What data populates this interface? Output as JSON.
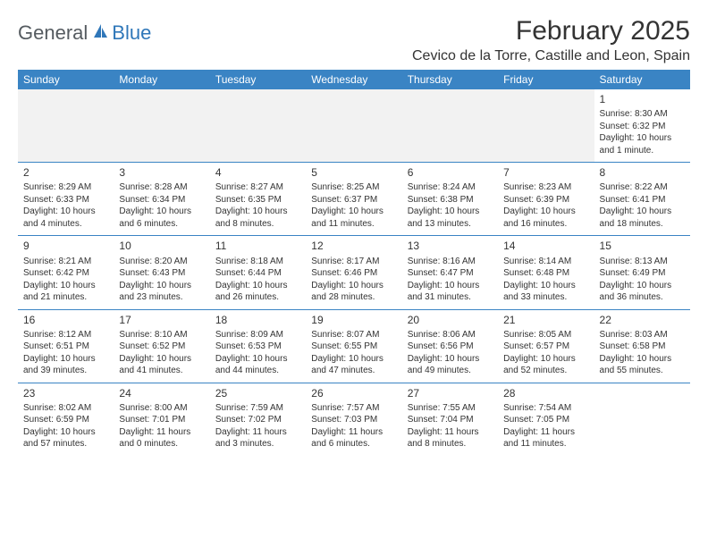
{
  "logo": {
    "general": "General",
    "blue": "Blue"
  },
  "title": "February 2025",
  "location": "Cevico de la Torre, Castille and Leon, Spain",
  "colors": {
    "header_bg": "#3a84c4",
    "header_text": "#ffffff",
    "blank_bg": "#f2f2f2",
    "text": "#333333",
    "logo_gray": "#555b60",
    "logo_blue": "#2f77b9"
  },
  "day_headers": [
    "Sunday",
    "Monday",
    "Tuesday",
    "Wednesday",
    "Thursday",
    "Friday",
    "Saturday"
  ],
  "weeks": [
    [
      null,
      null,
      null,
      null,
      null,
      null,
      {
        "n": "1",
        "sr": "Sunrise: 8:30 AM",
        "ss": "Sunset: 6:32 PM",
        "dl": "Daylight: 10 hours and 1 minute."
      }
    ],
    [
      {
        "n": "2",
        "sr": "Sunrise: 8:29 AM",
        "ss": "Sunset: 6:33 PM",
        "dl": "Daylight: 10 hours and 4 minutes."
      },
      {
        "n": "3",
        "sr": "Sunrise: 8:28 AM",
        "ss": "Sunset: 6:34 PM",
        "dl": "Daylight: 10 hours and 6 minutes."
      },
      {
        "n": "4",
        "sr": "Sunrise: 8:27 AM",
        "ss": "Sunset: 6:35 PM",
        "dl": "Daylight: 10 hours and 8 minutes."
      },
      {
        "n": "5",
        "sr": "Sunrise: 8:25 AM",
        "ss": "Sunset: 6:37 PM",
        "dl": "Daylight: 10 hours and 11 minutes."
      },
      {
        "n": "6",
        "sr": "Sunrise: 8:24 AM",
        "ss": "Sunset: 6:38 PM",
        "dl": "Daylight: 10 hours and 13 minutes."
      },
      {
        "n": "7",
        "sr": "Sunrise: 8:23 AM",
        "ss": "Sunset: 6:39 PM",
        "dl": "Daylight: 10 hours and 16 minutes."
      },
      {
        "n": "8",
        "sr": "Sunrise: 8:22 AM",
        "ss": "Sunset: 6:41 PM",
        "dl": "Daylight: 10 hours and 18 minutes."
      }
    ],
    [
      {
        "n": "9",
        "sr": "Sunrise: 8:21 AM",
        "ss": "Sunset: 6:42 PM",
        "dl": "Daylight: 10 hours and 21 minutes."
      },
      {
        "n": "10",
        "sr": "Sunrise: 8:20 AM",
        "ss": "Sunset: 6:43 PM",
        "dl": "Daylight: 10 hours and 23 minutes."
      },
      {
        "n": "11",
        "sr": "Sunrise: 8:18 AM",
        "ss": "Sunset: 6:44 PM",
        "dl": "Daylight: 10 hours and 26 minutes."
      },
      {
        "n": "12",
        "sr": "Sunrise: 8:17 AM",
        "ss": "Sunset: 6:46 PM",
        "dl": "Daylight: 10 hours and 28 minutes."
      },
      {
        "n": "13",
        "sr": "Sunrise: 8:16 AM",
        "ss": "Sunset: 6:47 PM",
        "dl": "Daylight: 10 hours and 31 minutes."
      },
      {
        "n": "14",
        "sr": "Sunrise: 8:14 AM",
        "ss": "Sunset: 6:48 PM",
        "dl": "Daylight: 10 hours and 33 minutes."
      },
      {
        "n": "15",
        "sr": "Sunrise: 8:13 AM",
        "ss": "Sunset: 6:49 PM",
        "dl": "Daylight: 10 hours and 36 minutes."
      }
    ],
    [
      {
        "n": "16",
        "sr": "Sunrise: 8:12 AM",
        "ss": "Sunset: 6:51 PM",
        "dl": "Daylight: 10 hours and 39 minutes."
      },
      {
        "n": "17",
        "sr": "Sunrise: 8:10 AM",
        "ss": "Sunset: 6:52 PM",
        "dl": "Daylight: 10 hours and 41 minutes."
      },
      {
        "n": "18",
        "sr": "Sunrise: 8:09 AM",
        "ss": "Sunset: 6:53 PM",
        "dl": "Daylight: 10 hours and 44 minutes."
      },
      {
        "n": "19",
        "sr": "Sunrise: 8:07 AM",
        "ss": "Sunset: 6:55 PM",
        "dl": "Daylight: 10 hours and 47 minutes."
      },
      {
        "n": "20",
        "sr": "Sunrise: 8:06 AM",
        "ss": "Sunset: 6:56 PM",
        "dl": "Daylight: 10 hours and 49 minutes."
      },
      {
        "n": "21",
        "sr": "Sunrise: 8:05 AM",
        "ss": "Sunset: 6:57 PM",
        "dl": "Daylight: 10 hours and 52 minutes."
      },
      {
        "n": "22",
        "sr": "Sunrise: 8:03 AM",
        "ss": "Sunset: 6:58 PM",
        "dl": "Daylight: 10 hours and 55 minutes."
      }
    ],
    [
      {
        "n": "23",
        "sr": "Sunrise: 8:02 AM",
        "ss": "Sunset: 6:59 PM",
        "dl": "Daylight: 10 hours and 57 minutes."
      },
      {
        "n": "24",
        "sr": "Sunrise: 8:00 AM",
        "ss": "Sunset: 7:01 PM",
        "dl": "Daylight: 11 hours and 0 minutes."
      },
      {
        "n": "25",
        "sr": "Sunrise: 7:59 AM",
        "ss": "Sunset: 7:02 PM",
        "dl": "Daylight: 11 hours and 3 minutes."
      },
      {
        "n": "26",
        "sr": "Sunrise: 7:57 AM",
        "ss": "Sunset: 7:03 PM",
        "dl": "Daylight: 11 hours and 6 minutes."
      },
      {
        "n": "27",
        "sr": "Sunrise: 7:55 AM",
        "ss": "Sunset: 7:04 PM",
        "dl": "Daylight: 11 hours and 8 minutes."
      },
      {
        "n": "28",
        "sr": "Sunrise: 7:54 AM",
        "ss": "Sunset: 7:05 PM",
        "dl": "Daylight: 11 hours and 11 minutes."
      },
      null
    ]
  ]
}
